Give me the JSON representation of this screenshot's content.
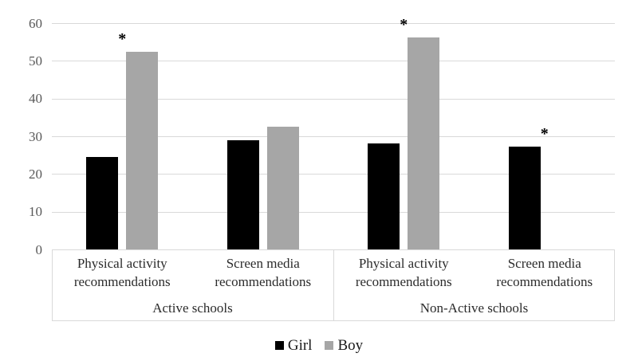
{
  "chart_data": {
    "type": "bar",
    "title": "",
    "xlabel": "",
    "ylabel": "",
    "ylim": [
      0,
      60
    ],
    "yticks": [
      0,
      10,
      20,
      30,
      40,
      50,
      60
    ],
    "grid": true,
    "legend_position": "bottom",
    "categories": [
      {
        "lines": [
          "Physical activity",
          "recommendations"
        ]
      },
      {
        "lines": [
          "Screen media",
          "recommendations"
        ]
      },
      {
        "lines": [
          "Physical activity",
          "recommendations"
        ]
      },
      {
        "lines": [
          "Screen media",
          "recommendations"
        ]
      }
    ],
    "groups": [
      {
        "label": "Active schools",
        "span": [
          0,
          1
        ]
      },
      {
        "label": "Non-Active schools",
        "span": [
          2,
          3
        ]
      }
    ],
    "series": [
      {
        "name": "Girl",
        "color": "#000000",
        "values": [
          24.6,
          29.1,
          28.2,
          27.3
        ]
      },
      {
        "name": "Boy",
        "color": "#a6a6a6",
        "values": [
          52.4,
          32.6,
          56.3,
          null
        ]
      }
    ],
    "annotations": [
      {
        "symbol": "*",
        "category_index": 0,
        "series": "Boy"
      },
      {
        "symbol": "*",
        "category_index": 2,
        "series": "Boy"
      },
      {
        "symbol": "*",
        "category_index": 3,
        "series": "Girl"
      }
    ],
    "colors": {
      "gridline": "#d9d9d9",
      "axis_text": "#595959",
      "label_text": "#2b2b2b"
    }
  }
}
